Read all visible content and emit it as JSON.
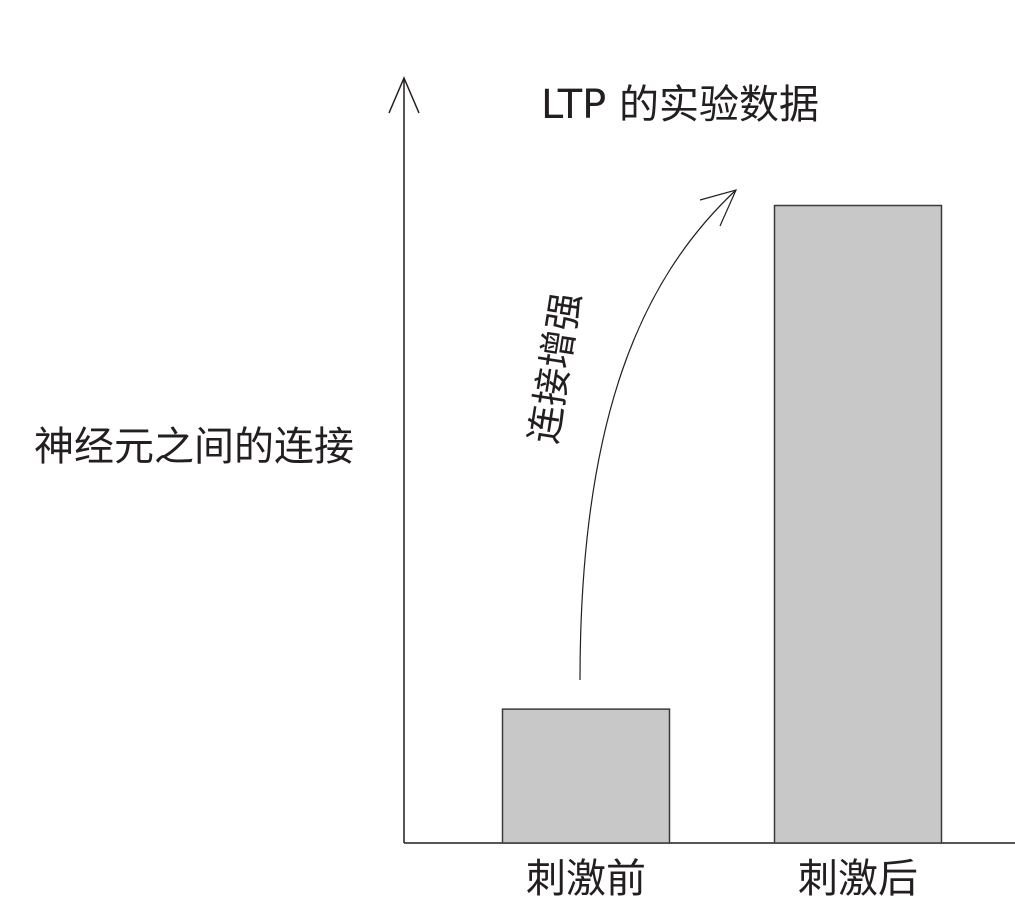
{
  "chart_data": {
    "type": "bar",
    "title": "LTP 的实验数据",
    "ylabel": "神经元之间的连接",
    "xlabel": "",
    "categories": [
      "刺激前",
      "刺激后"
    ],
    "values": [
      21,
      100
    ],
    "ylim": [
      0,
      120
    ],
    "grid": false,
    "annotation": {
      "text": "连接增强",
      "from_category": "刺激前",
      "to_category": "刺激后"
    },
    "colors": {
      "bar_fill": "#c8c8c8",
      "bar_stroke": "#3a3a3a",
      "axis": "#231f20",
      "text": "#231f20"
    }
  }
}
